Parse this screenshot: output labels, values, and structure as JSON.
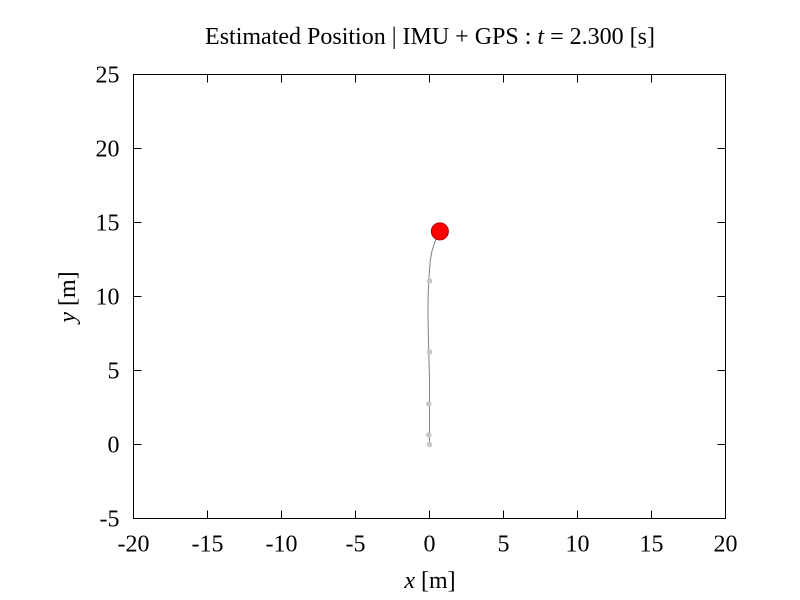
{
  "chart_data": {
    "type": "line",
    "title_prefix": "Estimated Position | IMU + GPS : ",
    "title_var": "t",
    "title_suffix": " = 2.300 [s]",
    "xlabel_var": "x",
    "xlabel_unit": " [m]",
    "ylabel_var": "y",
    "ylabel_unit": " [m]",
    "xlim": [
      -20,
      20
    ],
    "ylim": [
      -5,
      25
    ],
    "xticks": [
      -20,
      -15,
      -10,
      -5,
      0,
      5,
      10,
      15,
      20
    ],
    "yticks": [
      -5,
      0,
      5,
      10,
      15,
      20,
      25
    ],
    "grid": false,
    "legend": "none",
    "series": [
      {
        "kind": "trajectory",
        "color": "#808080",
        "x": [
          0.0,
          0.0,
          0.0,
          0.0,
          -0.05,
          -0.08,
          -0.1,
          -0.1,
          -0.08,
          -0.05,
          0.0,
          0.05,
          0.15,
          0.3,
          0.45,
          0.6,
          0.7
        ],
        "y": [
          0.0,
          0.6,
          2.7,
          4.5,
          6.2,
          7.5,
          8.7,
          9.6,
          10.4,
          11.1,
          11.8,
          12.4,
          13.0,
          13.5,
          13.9,
          14.2,
          14.4
        ]
      },
      {
        "kind": "gps-fixes",
        "color": "#c8c8c8",
        "x": [
          0.0,
          -0.05,
          -0.05,
          0.0,
          0.0
        ],
        "y": [
          0.0,
          0.65,
          2.75,
          6.25,
          11.05
        ]
      },
      {
        "kind": "current-position",
        "color": "#ff0000",
        "x": [
          0.7
        ],
        "y": [
          14.4
        ]
      }
    ]
  }
}
